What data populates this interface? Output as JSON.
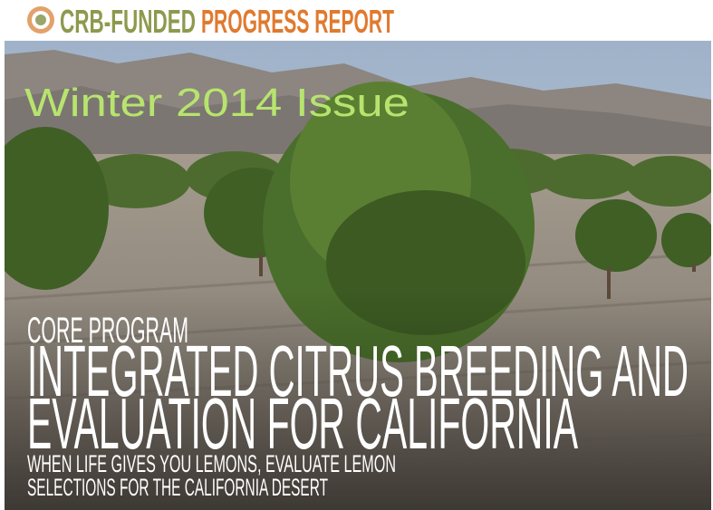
{
  "header": {
    "brand": "CRB-FUNDED",
    "title": "PROGRESS REPORT"
  },
  "issue": "Winter 2014 Issue",
  "program": "CORE PROGRAM",
  "headline": [
    "INTEGRATED CITRUS BREEDING AND",
    "EVALUATION FOR CALIFORNIA"
  ],
  "subheadline": [
    "WHEN LIFE GIVES YOU LEMONS, EVALUATE LEMON",
    "SELECTIONS FOR THE CALIFORNIA DESERT"
  ]
}
